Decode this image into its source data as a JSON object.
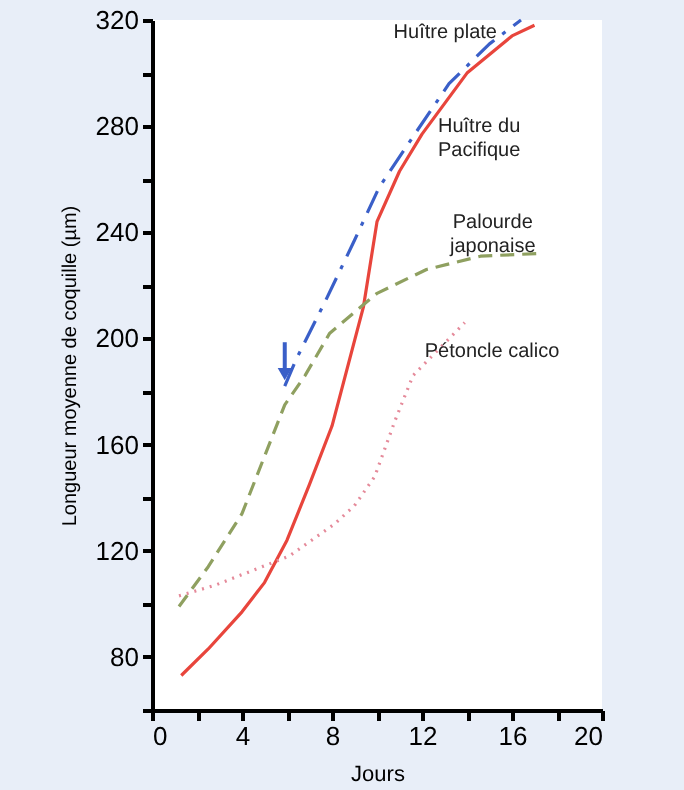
{
  "chart_data": {
    "type": "line",
    "xlabel": "Jours",
    "ylabel": "Longueur moyenne de coquille (µm)",
    "xlim": [
      0,
      20
    ],
    "ylim": [
      60,
      320
    ],
    "xticks": [
      0,
      {
        "value": 2,
        "label": null
      },
      4,
      {
        "value": 6,
        "label": null
      },
      8,
      {
        "value": 10,
        "label": null
      },
      12,
      {
        "value": 14,
        "label": null
      },
      16,
      {
        "value": 18,
        "label": null
      },
      20
    ],
    "yticks": [
      {
        "value": 60,
        "label": null
      },
      80,
      {
        "value": 100,
        "label": null
      },
      120,
      {
        "value": 140,
        "label": null
      },
      160,
      {
        "value": 180,
        "label": null
      },
      200,
      {
        "value": 220,
        "label": null
      },
      240,
      {
        "value": 260,
        "label": null
      },
      280,
      {
        "value": 300,
        "label": null
      },
      320
    ],
    "grid": false,
    "marker": "none",
    "series": [
      {
        "name": "Huître plate",
        "color": "#3a5fc8",
        "line_style": "dashdot",
        "x": [
          5.9,
          6.4,
          7.7,
          9.0,
          10.1,
          11.6,
          13.2,
          15.0,
          16.4
        ],
        "values": [
          182,
          192,
          214,
          237,
          257,
          276,
          296,
          311,
          320
        ]
      },
      {
        "name": "Huître du\nPacifique",
        "color": "#e8453c",
        "line_style": "solid",
        "x": [
          1.3,
          2.5,
          4,
          5,
          6,
          7,
          8,
          9.4,
          10,
          11,
          12,
          14,
          16,
          17
        ],
        "values": [
          73,
          83,
          97,
          108,
          124,
          145,
          167,
          212,
          244,
          263,
          277,
          300,
          314,
          318
        ]
      },
      {
        "name": "Palourde\njaponaise",
        "color": "#8fa060",
        "line_style": "dashed",
        "x": [
          1.2,
          2.5,
          4,
          5.9,
          6.8,
          7.9,
          10,
          12.2,
          14.6,
          17.1
        ],
        "values": [
          99,
          114,
          134,
          175,
          186,
          202,
          217,
          226,
          231,
          232
        ]
      },
      {
        "name": "Pétoncle calico",
        "color": "#e58a9a",
        "line_style": "dotted",
        "x": [
          1.2,
          2.8,
          6.1,
          8.1,
          9.0,
          9.9,
          10.8,
          11.6,
          13.9
        ],
        "values": [
          103,
          107,
          118,
          130,
          137,
          148,
          169,
          186,
          206
        ]
      }
    ]
  }
}
